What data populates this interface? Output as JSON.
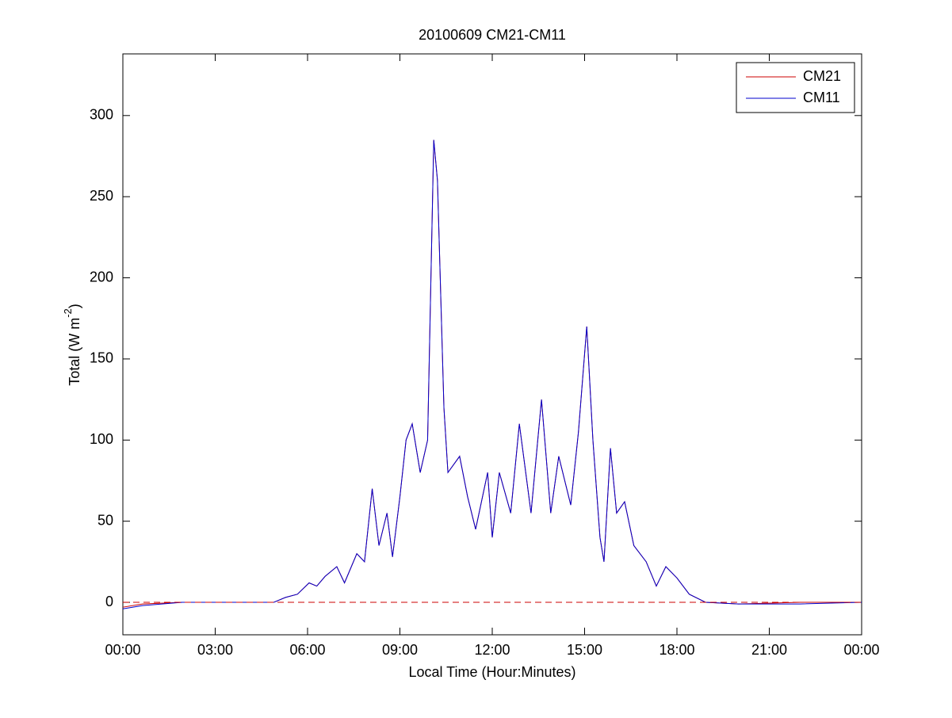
{
  "chart_data": {
    "type": "line",
    "title": "20100609 CM21-CM11",
    "x_label": "Local Time (Hour:Minutes)",
    "y_label": "Total (W m",
    "y_label_superscript": "-2",
    "y_label_end": ")",
    "x": [
      0,
      0.64,
      1.93,
      4.9,
      5.28,
      5.67,
      6.05,
      6.3,
      6.57,
      6.95,
      7.2,
      7.6,
      7.85,
      8.1,
      8.32,
      8.58,
      8.76,
      9.0,
      9.2,
      9.4,
      9.66,
      9.9,
      10.1,
      10.22,
      10.43,
      10.56,
      10.94,
      11.2,
      11.46,
      11.85,
      12.0,
      12.23,
      12.6,
      12.88,
      13.26,
      13.6,
      13.9,
      14.16,
      14.55,
      14.8,
      15.07,
      15.27,
      15.5,
      15.63,
      15.84,
      16.04,
      16.3,
      16.6,
      17.0,
      17.33,
      17.64,
      18.0,
      18.4,
      18.93,
      20,
      22,
      24
    ],
    "series": [
      {
        "name": "CM21",
        "color": "#cc0000",
        "values": [
          -3,
          -1,
          0,
          0,
          3,
          5,
          12,
          10,
          16,
          22,
          12,
          30,
          25,
          70,
          35,
          55,
          28,
          65,
          100,
          110,
          80,
          100,
          285,
          260,
          120,
          80,
          90,
          65,
          45,
          80,
          40,
          80,
          55,
          110,
          55,
          125,
          55,
          90,
          60,
          105,
          170,
          100,
          40,
          25,
          95,
          55,
          62,
          35,
          25,
          10,
          22,
          15,
          5,
          0,
          -1,
          0,
          0
        ]
      },
      {
        "name": "CM11",
        "color": "#0000cc",
        "values": [
          -4,
          -2,
          0,
          0,
          3,
          5,
          12,
          10,
          16,
          22,
          12,
          30,
          25,
          70,
          35,
          55,
          28,
          65,
          100,
          110,
          80,
          100,
          285,
          260,
          120,
          80,
          90,
          65,
          45,
          80,
          40,
          80,
          55,
          110,
          55,
          125,
          55,
          90,
          60,
          105,
          170,
          100,
          40,
          25,
          95,
          55,
          62,
          35,
          25,
          10,
          22,
          15,
          5,
          0,
          -1,
          -1,
          0
        ]
      }
    ],
    "reference_line": {
      "value": 0,
      "color": "#cc0000",
      "dash": true
    },
    "xlim": [
      0,
      24
    ],
    "xticks": [
      {
        "value": 0,
        "label": "00:00"
      },
      {
        "value": 3,
        "label": "03:00"
      },
      {
        "value": 6,
        "label": "06:00"
      },
      {
        "value": 9,
        "label": "09:00"
      },
      {
        "value": 12,
        "label": "12:00"
      },
      {
        "value": 15,
        "label": "15:00"
      },
      {
        "value": 18,
        "label": "18:00"
      },
      {
        "value": 21,
        "label": "21:00"
      },
      {
        "value": 24,
        "label": "00:00"
      }
    ],
    "ylim": [
      -20,
      338
    ],
    "yticks": [
      0,
      50,
      100,
      150,
      200,
      250,
      300
    ],
    "legend_position": "top-right"
  }
}
